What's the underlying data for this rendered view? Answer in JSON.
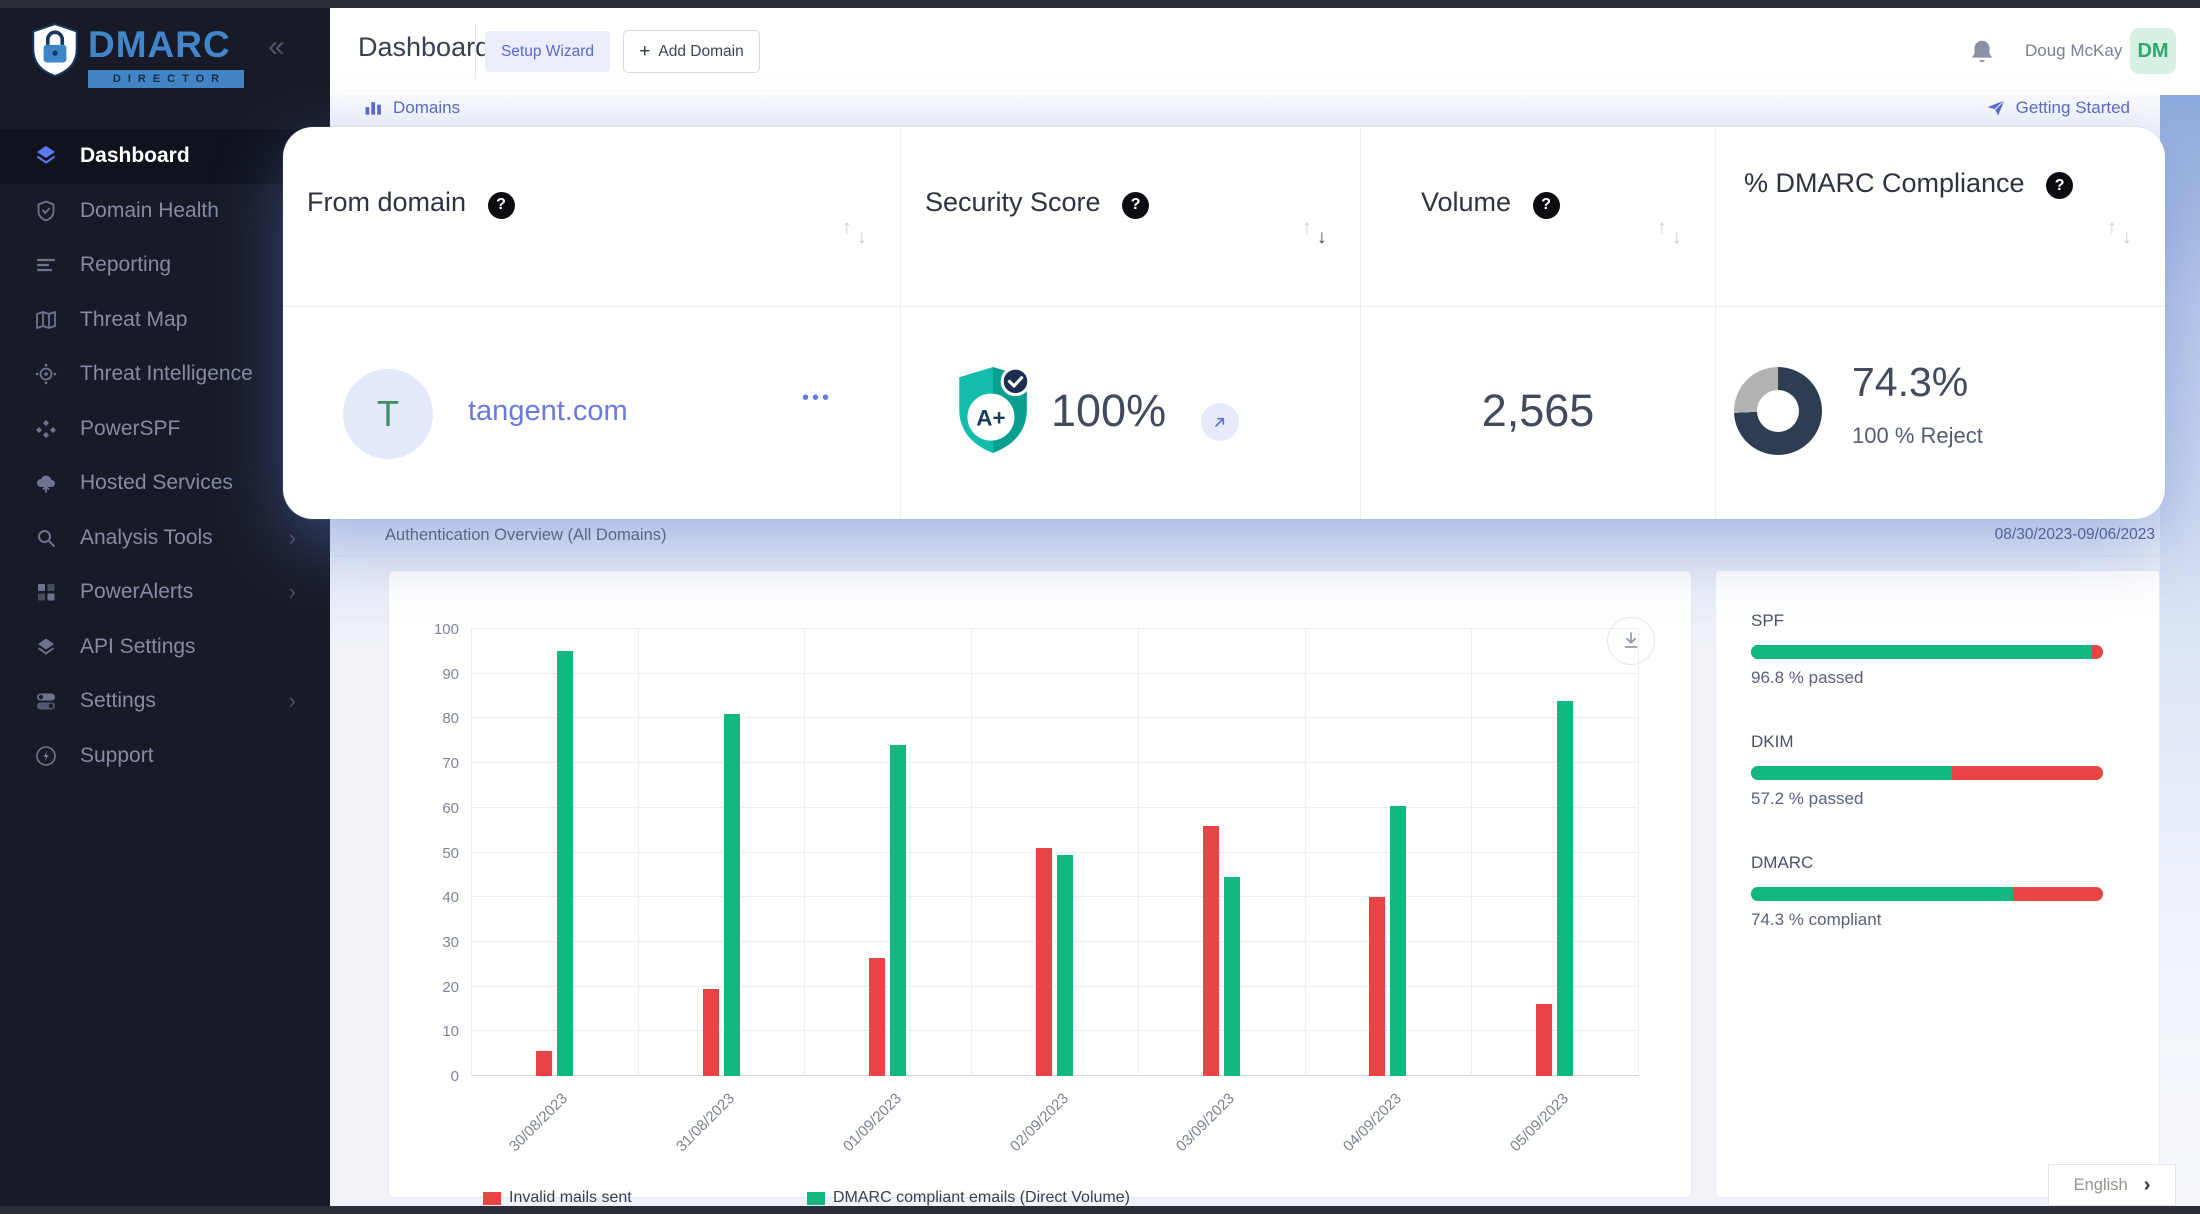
{
  "app": {
    "logo_title": "DMARC",
    "logo_subtitle": "DIRECTOR"
  },
  "icons": {
    "collapse": "«",
    "plus": "+",
    "chevron_right": "›",
    "sort_up": "↑",
    "sort_down": "↓",
    "ellipsis": "•••",
    "question": "?",
    "lang_chevron": "›"
  },
  "sidebar": {
    "items": [
      {
        "label": "Dashboard",
        "icon": "dashboard-icon",
        "active": true
      },
      {
        "label": "Domain Health",
        "icon": "shield-check-icon"
      },
      {
        "label": "Reporting",
        "icon": "report-lines-icon"
      },
      {
        "label": "Threat Map",
        "icon": "map-icon"
      },
      {
        "label": "Threat Intelligence",
        "icon": "target-icon"
      },
      {
        "label": "PowerSPF",
        "icon": "cluster-icon"
      },
      {
        "label": "Hosted Services",
        "icon": "cloud-icon"
      },
      {
        "label": "Analysis Tools",
        "icon": "search-icon",
        "has_submenu": true
      },
      {
        "label": "PowerAlerts",
        "icon": "grid-icon",
        "has_submenu": true
      },
      {
        "label": "API Settings",
        "icon": "layers-icon"
      },
      {
        "label": "Settings",
        "icon": "toggles-icon",
        "has_submenu": true
      },
      {
        "label": "Support",
        "icon": "bolt-icon"
      }
    ]
  },
  "topbar": {
    "title": "Dashboard",
    "setup_wizard_label": "Setup Wizard",
    "add_domain_label": "Add Domain",
    "user_name": "Doug McKay",
    "user_initials": "DM"
  },
  "section_links": {
    "domains_label": "Domains",
    "getting_started_label": "Getting Started"
  },
  "domain_table": {
    "columns": [
      {
        "label": "From domain"
      },
      {
        "label": "Security Score",
        "sorted": "desc"
      },
      {
        "label": "Volume"
      },
      {
        "label": "% DMARC Compliance"
      }
    ],
    "row": {
      "initial": "T",
      "domain": "tangent.com",
      "security_grade": "A+",
      "security_score": "100%",
      "volume": "2,565",
      "compliance_pct": "74.3%",
      "compliance_detail": "100 % Reject",
      "compliance_value": 74.3
    }
  },
  "auth_overview": {
    "title": "Authentication Overview (All Domains)",
    "date_range": "08/30/2023-09/06/2023"
  },
  "chart_data": {
    "type": "bar",
    "categories": [
      "30/08/2023",
      "31/08/2023",
      "01/09/2023",
      "02/09/2023",
      "03/09/2023",
      "04/09/2023",
      "05/09/2023"
    ],
    "series": [
      {
        "name": "Invalid mails sent",
        "color": "#e84444",
        "values": [
          5.5,
          19.5,
          26.5,
          51,
          56,
          40,
          16
        ]
      },
      {
        "name": "DMARC compliant emails (Direct Volume)",
        "color": "#12b87f",
        "values": [
          95,
          81,
          74,
          49.5,
          44.5,
          60.5,
          84
        ]
      }
    ],
    "title": "",
    "xlabel": "",
    "ylabel": "",
    "ylim": [
      0,
      100
    ],
    "yticks": [
      0,
      10,
      20,
      30,
      40,
      50,
      60,
      70,
      80,
      90,
      100
    ],
    "grid": true,
    "legend_position": "bottom"
  },
  "auth_summary": {
    "items": [
      {
        "label": "SPF",
        "value": 96.8,
        "text": "96.8 % passed"
      },
      {
        "label": "DKIM",
        "value": 57.2,
        "text": "57.2 % passed"
      },
      {
        "label": "DMARC",
        "value": 74.3,
        "text": "74.3 % compliant"
      }
    ]
  },
  "language_selector": {
    "label": "English"
  },
  "colors": {
    "accent_indigo": "#5b68c7",
    "bar_green": "#12b87f",
    "bar_red": "#e84444",
    "donut_navy": "#2d3e52",
    "donut_gray": "#b2b2b2",
    "shield_teal": "#13bdab",
    "avatar_green": "#2ea86f"
  }
}
